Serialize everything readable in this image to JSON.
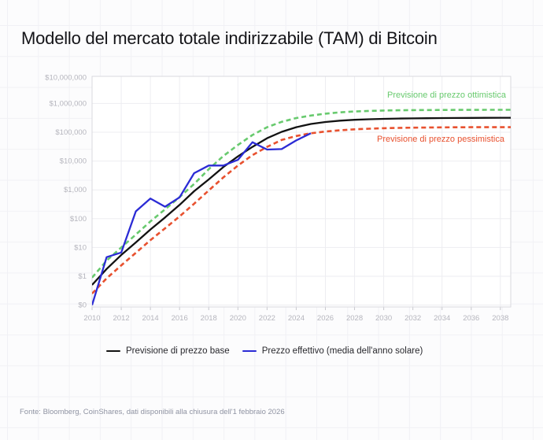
{
  "page": {
    "title": "Modello del mercato totale indirizzabile (TAM) di Bitcoin",
    "source_note": "Fonte: Bloomberg, CoinShares, dati disponibili alla chiusura dell'1 febbraio 2026"
  },
  "colors": {
    "optimistic": "#68ca6e",
    "pessimistic": "#e8512f",
    "base": "#121212",
    "actual": "#2b2bd5",
    "axis_label": "#b5b5bd",
    "grid": "#ededf1",
    "plot_border": "#d9d9de",
    "tick": "#c7c7cd"
  },
  "annotations": {
    "optimistic_label": "Previsione di prezzo ottimistica",
    "pessimistic_label": "Previsione di prezzo pessimistica"
  },
  "legend": {
    "items": [
      {
        "label": "Previsione di prezzo base",
        "color": "#121212"
      },
      {
        "label": "Prezzo effettivo (media dell'anno solare)",
        "color": "#2b2bd5"
      }
    ]
  },
  "chart_data": {
    "type": "line",
    "title": "Modello del mercato totale indirizzabile (TAM) di Bitcoin",
    "y_scale": "log",
    "x_range": [
      2010,
      2038.7
    ],
    "x_ticks": [
      2010,
      2012,
      2014,
      2016,
      2018,
      2020,
      2022,
      2024,
      2026,
      2028,
      2030,
      2032,
      2034,
      2036,
      2038
    ],
    "y_ticks": [
      {
        "label": "$10,000,000",
        "value": 10000000
      },
      {
        "label": "$1,000,000",
        "value": 1000000
      },
      {
        "label": "$100,000",
        "value": 100000
      },
      {
        "label": "$10,000",
        "value": 10000
      },
      {
        "label": "$1,000",
        "value": 1000
      },
      {
        "label": "$100",
        "value": 100
      },
      {
        "label": "$10",
        "value": 10
      },
      {
        "label": "$1",
        "value": 1
      },
      {
        "label": "$0",
        "value": 0
      }
    ],
    "series": [
      {
        "name": "Previsione di prezzo ottimistica",
        "color": "#68ca6e",
        "style": "dashed",
        "width": 2.6,
        "x": [
          2010,
          2011,
          2012,
          2013,
          2014,
          2015,
          2016,
          2017,
          2018,
          2019,
          2020,
          2021,
          2022,
          2023,
          2024,
          2025,
          2026,
          2027,
          2028,
          2029,
          2030,
          2031,
          2032,
          2033,
          2034,
          2035,
          2036,
          2037,
          2038,
          2039
        ],
        "values": [
          0.9,
          3.5,
          10,
          28,
          80,
          210,
          560,
          1600,
          5200,
          15000,
          36000,
          80000,
          150000,
          230000,
          310000,
          380000,
          440000,
          490000,
          525000,
          550000,
          567000,
          578000,
          586000,
          591000,
          594500,
          596800,
          598200,
          599000,
          599600,
          600000
        ]
      },
      {
        "name": "Previsione di prezzo pessimistica",
        "color": "#e8512f",
        "style": "dashed",
        "width": 2.6,
        "x": [
          2010,
          2011,
          2012,
          2013,
          2014,
          2015,
          2016,
          2017,
          2018,
          2019,
          2020,
          2021,
          2022,
          2023,
          2024,
          2025,
          2026,
          2027,
          2028,
          2029,
          2030,
          2031,
          2032,
          2033,
          2034,
          2035,
          2036,
          2037,
          2038,
          2039
        ],
        "values": [
          0.25,
          0.85,
          2.4,
          6.5,
          18,
          46,
          120,
          330,
          950,
          2700,
          7000,
          16000,
          31000,
          54000,
          74000,
          92000,
          106000,
          117000,
          126000,
          133000,
          138000,
          141500,
          144000,
          146000,
          147500,
          148500,
          149200,
          149600,
          149900,
          150000
        ]
      },
      {
        "name": "Previsione di prezzo base",
        "color": "#121212",
        "style": "solid",
        "width": 2.3,
        "x": [
          2010,
          2011,
          2012,
          2013,
          2014,
          2015,
          2016,
          2017,
          2018,
          2019,
          2020,
          2021,
          2022,
          2023,
          2024,
          2025,
          2026,
          2027,
          2028,
          2029,
          2030,
          2031,
          2032,
          2033,
          2034,
          2035,
          2036,
          2037,
          2038,
          2039
        ],
        "values": [
          0.5,
          1.8,
          5.5,
          15,
          42,
          110,
          300,
          900,
          2300,
          6200,
          14500,
          31000,
          62000,
          103000,
          150000,
          193000,
          226000,
          252000,
          270000,
          283000,
          292000,
          298000,
          303000,
          307000,
          310000,
          312500,
          314500,
          316000,
          317300,
          318000
        ]
      },
      {
        "name": "Prezzo effettivo (media dell'anno solare)",
        "color": "#2b2bd5",
        "style": "solid",
        "width": 2.3,
        "x": [
          2010,
          2011,
          2012,
          2013,
          2014,
          2015,
          2016,
          2017,
          2018,
          2019,
          2020,
          2021,
          2022,
          2023,
          2024,
          2025
        ],
        "values": [
          0.1,
          4.6,
          6.7,
          180,
          500,
          260,
          550,
          3800,
          7000,
          7000,
          11000,
          45000,
          25000,
          26000,
          52000,
          92000
        ]
      }
    ]
  }
}
